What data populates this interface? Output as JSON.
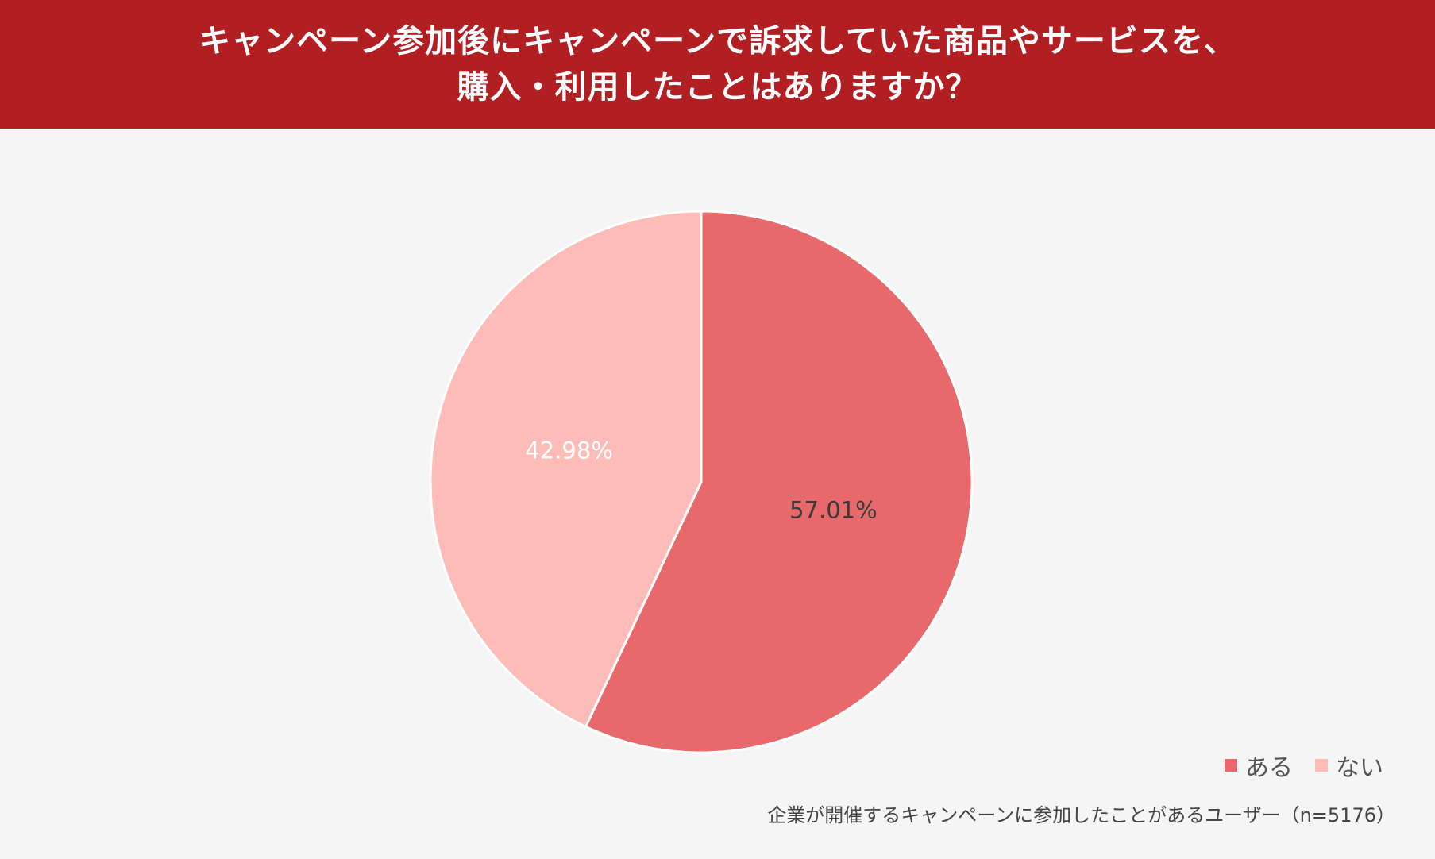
{
  "title": {
    "line1": "キャンペーン参加後にキャンペーンで訴求していた商品やサービスを、",
    "line2": "購入・利用したことはありますか？"
  },
  "footnote": "企業が開催するキャンペーンに参加したことがあるユーザー（n=5176）",
  "colors": {
    "banner": "#b11f22",
    "aru": "#e8696b",
    "nai": "#fdbcb8",
    "background": "#f5f5f5"
  },
  "chart_data": {
    "type": "pie",
    "title": "キャンペーン参加後にキャンペーンで訴求していた商品やサービスを、購入・利用したことはありますか？",
    "slices": [
      {
        "name": "ある",
        "value": 57.01,
        "label": "57.01%",
        "color": "#e8696b",
        "label_color": "#3a3a3a"
      },
      {
        "name": "ない",
        "value": 42.98,
        "label": "42.98%",
        "color": "#fdbcb8",
        "label_color": "#ffffff"
      }
    ],
    "start": "12 o'clock",
    "direction": "clockwise",
    "legend_position": "bottom-right"
  }
}
